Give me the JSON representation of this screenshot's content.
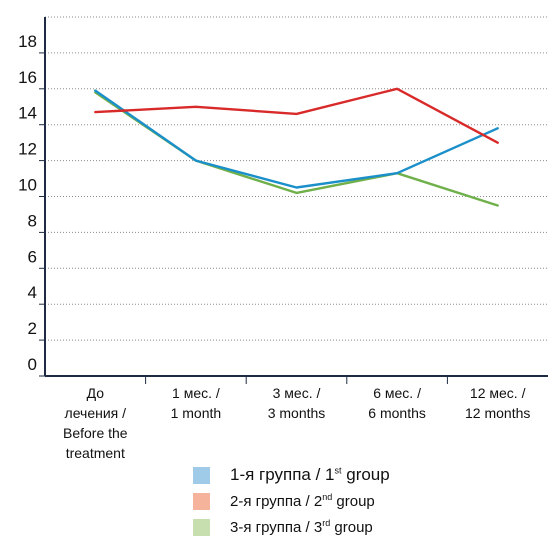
{
  "chart_data": {
    "type": "line",
    "categories": [
      [
        "До",
        "лечения /",
        "Before the",
        "treatment"
      ],
      [
        "1 мес. /",
        "1 month"
      ],
      [
        "3 мес. /",
        "3 months"
      ],
      [
        "6 мес. /",
        "6 months"
      ],
      [
        "12 мес. /",
        "12 months"
      ]
    ],
    "y_ticks": [
      "0",
      "2",
      "4",
      "6",
      "8",
      "10",
      "12",
      "14",
      "16",
      "18"
    ],
    "ylim": [
      0,
      20
    ],
    "grid": "dotted-horizontal",
    "legend_placement": "bottom",
    "series": [
      {
        "name": "1-я группа / 1",
        "name_sup": "st",
        "name_tail": " group",
        "color": "#1a8fc9",
        "swatch": "#9fcbe8",
        "values": [
          15.9,
          12.0,
          10.5,
          11.3,
          13.8
        ]
      },
      {
        "name": "2-я группа / 2",
        "name_sup": "nd",
        "name_tail": " group",
        "color": "#d92a2a",
        "swatch": "#f4b39a",
        "values": [
          14.7,
          15.0,
          14.6,
          16.0,
          13.0
        ]
      },
      {
        "name": "3-я группа / 3",
        "name_sup": "rd",
        "name_tail": " group",
        "color": "#6fb04a",
        "swatch": "#c7dfae",
        "values": [
          15.8,
          12.0,
          10.2,
          11.3,
          9.5
        ]
      }
    ]
  }
}
